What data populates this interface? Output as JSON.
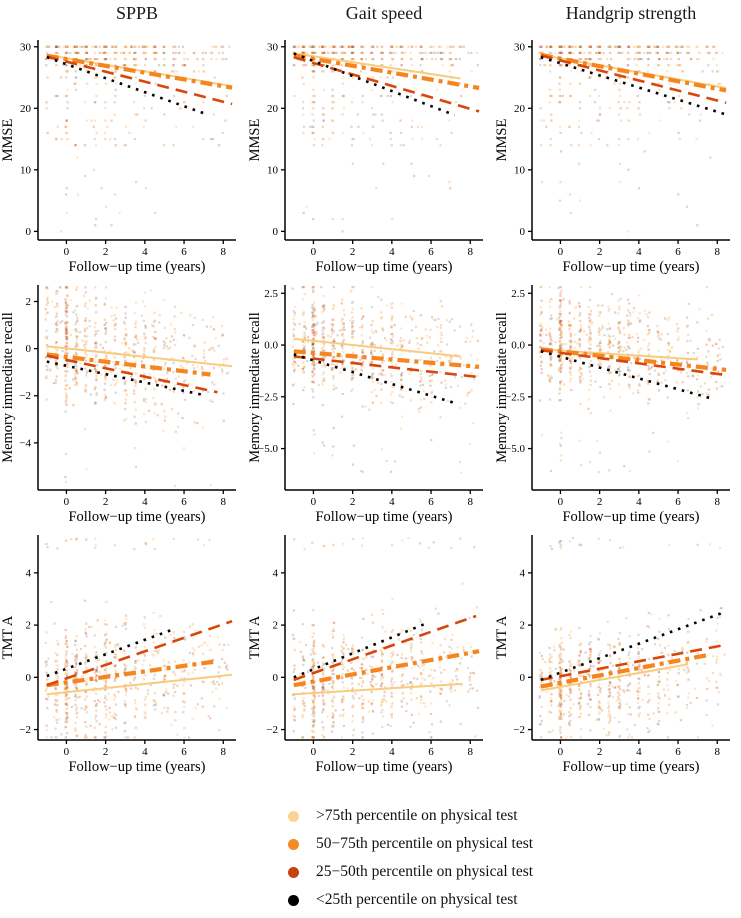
{
  "figure": {
    "column_titles": [
      "SPPB",
      "Gait speed",
      "Handgrip strength"
    ],
    "row_titles": [
      "MMSE",
      "Memory immediate recall",
      "TMT A"
    ],
    "x_axis_label": "Follow−up time (years)"
  },
  "legend": {
    "position": "bottom-center",
    "items": [
      {
        "label": ">75th percentile on physical test",
        "dot_color": "#FBD397",
        "line": {
          "color": "#F9CB7D",
          "width": 2.0,
          "dash": ""
        }
      },
      {
        "label": "50−75th percentile on physical test",
        "dot_color": "#F68A25",
        "line": {
          "color": "#F5861F",
          "width": 4.2,
          "dash": "12 5 4 5"
        }
      },
      {
        "label": "25−50th percentile on physical test",
        "dot_color": "#C4450C",
        "line": {
          "color": "#D84709",
          "width": 2.6,
          "dash": "12 7"
        }
      },
      {
        "label": "<25th percentile on physical test",
        "dot_color": "#000000",
        "line": {
          "color": "#000000",
          "width": 2.6,
          "dash": "2.6 6"
        }
      }
    ]
  },
  "chart_data": [
    {
      "type": "scatter",
      "id": "sppb-mmse",
      "column": "SPPB",
      "ylabel": "MMSE",
      "xlabel": "Follow−up time (years)",
      "xlim": [
        -1.45,
        8.65
      ],
      "xticks": [
        0,
        2,
        4,
        6,
        8
      ],
      "xtick_labels": [
        "0",
        "2",
        "4",
        "6",
        "8"
      ],
      "ylim": [
        -1.4,
        31.1
      ],
      "yticks": [
        0,
        10,
        20,
        30
      ],
      "ytick_labels": [
        "0",
        "10",
        "20",
        "30"
      ],
      "trend_lines": [
        {
          "group": ">75th percentile",
          "x": [
            -1,
            8.45
          ],
          "y": [
            28.7,
            23.6
          ]
        },
        {
          "group": "50−75th percentile",
          "x": [
            -1,
            8.45
          ],
          "y": [
            28.55,
            23.35
          ]
        },
        {
          "group": "25−50th percentile",
          "x": [
            -1,
            8.45
          ],
          "y": [
            28.4,
            20.7
          ]
        },
        {
          "group": "<25th percentile",
          "x": [
            -1,
            7.0
          ],
          "y": [
            28.3,
            19.2
          ]
        }
      ],
      "scatter": {
        "profile": "mmse",
        "count": 520,
        "seed": 11
      }
    },
    {
      "type": "scatter",
      "id": "gait-mmse",
      "column": "Gait speed",
      "ylabel": "MMSE",
      "xlabel": "Follow−up time (years)",
      "xlim": [
        -1.45,
        8.65
      ],
      "xticks": [
        0,
        2,
        4,
        6,
        8
      ],
      "xtick_labels": [
        "0",
        "2",
        "4",
        "6",
        "8"
      ],
      "ylim": [
        -1.4,
        31.1
      ],
      "yticks": [
        0,
        10,
        20,
        30
      ],
      "ytick_labels": [
        "0",
        "10",
        "20",
        "30"
      ],
      "trend_lines": [
        {
          "group": ">75th percentile",
          "x": [
            -1,
            7.5
          ],
          "y": [
            28.95,
            24.85
          ]
        },
        {
          "group": "50−75th percentile",
          "x": [
            -1,
            8.45
          ],
          "y": [
            28.6,
            23.3
          ]
        },
        {
          "group": "25−50th percentile",
          "x": [
            -1,
            8.45
          ],
          "y": [
            28.3,
            19.5
          ]
        },
        {
          "group": "<25th percentile",
          "x": [
            -1,
            7.2
          ],
          "y": [
            28.9,
            18.9
          ]
        }
      ],
      "scatter": {
        "profile": "mmse",
        "count": 520,
        "seed": 12
      }
    },
    {
      "type": "scatter",
      "id": "handgrip-mmse",
      "column": "Handgrip strength",
      "ylabel": "MMSE",
      "xlabel": "Follow−up time (years)",
      "xlim": [
        -1.45,
        8.65
      ],
      "xticks": [
        0,
        2,
        4,
        6,
        8
      ],
      "xtick_labels": [
        "0",
        "2",
        "4",
        "6",
        "8"
      ],
      "ylim": [
        -1.4,
        31.1
      ],
      "yticks": [
        0,
        10,
        20,
        30
      ],
      "ytick_labels": [
        "0",
        "10",
        "20",
        "30"
      ],
      "trend_lines": [
        {
          "group": ">75th percentile",
          "x": [
            -1,
            8.45
          ],
          "y": [
            28.7,
            23.3
          ]
        },
        {
          "group": "50−75th percentile",
          "x": [
            -1,
            8.45
          ],
          "y": [
            28.7,
            22.9
          ]
        },
        {
          "group": "25−50th percentile",
          "x": [
            -1,
            8.45
          ],
          "y": [
            28.6,
            20.9
          ]
        },
        {
          "group": "<25th percentile",
          "x": [
            -1,
            8.45
          ],
          "y": [
            28.3,
            19.0
          ]
        }
      ],
      "scatter": {
        "profile": "mmse",
        "count": 520,
        "seed": 13
      }
    },
    {
      "type": "scatter",
      "id": "sppb-memory",
      "column": "SPPB",
      "ylabel": "Memory immediate recall",
      "xlabel": "Follow−up time (years)",
      "xlim": [
        -1.45,
        8.65
      ],
      "xticks": [
        0,
        2,
        4,
        6,
        8
      ],
      "xtick_labels": [
        "0",
        "2",
        "4",
        "6",
        "8"
      ],
      "ylim": [
        -6.0,
        2.7
      ],
      "yticks": [
        2,
        0,
        -2,
        -4
      ],
      "ytick_labels": [
        "2",
        "0",
        "−2",
        "−4"
      ],
      "trend_lines": [
        {
          "group": ">75th percentile",
          "x": [
            -1,
            8.45
          ],
          "y": [
            0.1,
            -0.75
          ]
        },
        {
          "group": "50−75th percentile",
          "x": [
            -1,
            7.35
          ],
          "y": [
            -0.25,
            -1.1
          ]
        },
        {
          "group": "25−50th percentile",
          "x": [
            -1,
            7.7
          ],
          "y": [
            -0.3,
            -1.85
          ]
        },
        {
          "group": "<25th percentile",
          "x": [
            -1,
            6.9
          ],
          "y": [
            -0.55,
            -1.95
          ]
        }
      ],
      "scatter": {
        "profile": "zscore",
        "count": 680,
        "seed": 21
      }
    },
    {
      "type": "scatter",
      "id": "gait-memory",
      "column": "Gait speed",
      "ylabel": "Memory immediate recall",
      "xlabel": "Follow−up time (years)",
      "xlim": [
        -1.45,
        8.65
      ],
      "xticks": [
        0,
        2,
        4,
        6,
        8
      ],
      "xtick_labels": [
        "0",
        "2",
        "4",
        "6",
        "8"
      ],
      "ylim": [
        -7.0,
        2.9
      ],
      "yticks": [
        2.5,
        0,
        -2.5,
        -5
      ],
      "ytick_labels": [
        "2.5",
        "0.0",
        "−2.5",
        "−5.0"
      ],
      "trend_lines": [
        {
          "group": ">75th percentile",
          "x": [
            -1,
            7.5
          ],
          "y": [
            0.3,
            -0.55
          ]
        },
        {
          "group": "50−75th percentile",
          "x": [
            -1,
            8.45
          ],
          "y": [
            -0.3,
            -1.05
          ]
        },
        {
          "group": "25−50th percentile",
          "x": [
            -1,
            8.45
          ],
          "y": [
            -0.55,
            -1.55
          ]
        },
        {
          "group": "<25th percentile",
          "x": [
            -1,
            7.4
          ],
          "y": [
            -0.45,
            -2.85
          ]
        }
      ],
      "scatter": {
        "profile": "zscore",
        "count": 680,
        "seed": 22
      }
    },
    {
      "type": "scatter",
      "id": "handgrip-memory",
      "column": "Handgrip strength",
      "ylabel": "Memory immediate recall",
      "xlabel": "Follow−up time (years)",
      "xlim": [
        -1.45,
        8.65
      ],
      "xticks": [
        0,
        2,
        4,
        6,
        8
      ],
      "xtick_labels": [
        "0",
        "2",
        "4",
        "6",
        "8"
      ],
      "ylim": [
        -7.0,
        2.9
      ],
      "yticks": [
        2.5,
        0,
        -2.5,
        -5
      ],
      "ytick_labels": [
        "2.5",
        "0.0",
        "−2.5",
        "−5.0"
      ],
      "trend_lines": [
        {
          "group": ">75th percentile",
          "x": [
            -1,
            7.0
          ],
          "y": [
            -0.2,
            -0.7
          ]
        },
        {
          "group": "50−75th percentile",
          "x": [
            -1,
            8.45
          ],
          "y": [
            -0.2,
            -1.2
          ]
        },
        {
          "group": "25−50th percentile",
          "x": [
            -1,
            8.45
          ],
          "y": [
            -0.25,
            -1.45
          ]
        },
        {
          "group": "<25th percentile",
          "x": [
            -1,
            7.6
          ],
          "y": [
            -0.3,
            -2.55
          ]
        }
      ],
      "scatter": {
        "profile": "zscore",
        "count": 680,
        "seed": 23
      }
    },
    {
      "type": "scatter",
      "id": "sppb-tmta",
      "column": "SPPB",
      "ylabel": "TMT A",
      "xlabel": "Follow−up time (years)",
      "xlim": [
        -1.45,
        8.65
      ],
      "xticks": [
        0,
        2,
        4,
        6,
        8
      ],
      "xtick_labels": [
        "0",
        "2",
        "4",
        "6",
        "8"
      ],
      "ylim": [
        -2.4,
        5.45
      ],
      "yticks": [
        4,
        2,
        0,
        -2
      ],
      "ytick_labels": [
        "4",
        "2",
        "0",
        "−2"
      ],
      "trend_lines": [
        {
          "group": ">75th percentile",
          "x": [
            -1,
            8.45
          ],
          "y": [
            -0.65,
            0.1
          ]
        },
        {
          "group": "50−75th percentile",
          "x": [
            -1,
            7.5
          ],
          "y": [
            -0.3,
            0.6
          ]
        },
        {
          "group": "25−50th percentile",
          "x": [
            -1,
            8.45
          ],
          "y": [
            -0.3,
            2.15
          ]
        },
        {
          "group": "<25th percentile",
          "x": [
            -1,
            5.5
          ],
          "y": [
            0.05,
            1.85
          ]
        }
      ],
      "scatter": {
        "profile": "tmt",
        "count": 680,
        "seed": 31
      }
    },
    {
      "type": "scatter",
      "id": "gait-tmta",
      "column": "Gait speed",
      "ylabel": "TMT A",
      "xlabel": "Follow−up time (years)",
      "xlim": [
        -1.45,
        8.65
      ],
      "xticks": [
        0,
        2,
        4,
        6,
        8
      ],
      "xtick_labels": [
        "0",
        "2",
        "4",
        "6",
        "8"
      ],
      "ylim": [
        -2.4,
        5.45
      ],
      "yticks": [
        4,
        2,
        0,
        -2
      ],
      "ytick_labels": [
        "4",
        "2",
        "0",
        "−2"
      ],
      "trend_lines": [
        {
          "group": ">75th percentile",
          "x": [
            -1,
            7.6
          ],
          "y": [
            -0.65,
            -0.25
          ]
        },
        {
          "group": "50−75th percentile",
          "x": [
            -1,
            8.45
          ],
          "y": [
            -0.3,
            1.0
          ]
        },
        {
          "group": "25−50th percentile",
          "x": [
            -1,
            8.3
          ],
          "y": [
            -0.1,
            2.35
          ]
        },
        {
          "group": "<25th percentile",
          "x": [
            -1,
            5.7
          ],
          "y": [
            0.0,
            2.05
          ]
        }
      ],
      "scatter": {
        "profile": "tmt",
        "count": 680,
        "seed": 32
      }
    },
    {
      "type": "scatter",
      "id": "handgrip-tmta",
      "column": "Handgrip strength",
      "ylabel": "TMT A",
      "xlabel": "Follow−up time (years)",
      "xlim": [
        -1.45,
        8.65
      ],
      "xticks": [
        0,
        2,
        4,
        6,
        8
      ],
      "xtick_labels": [
        "0",
        "2",
        "4",
        "6",
        "8"
      ],
      "ylim": [
        -2.4,
        5.45
      ],
      "yticks": [
        4,
        2,
        0,
        -2
      ],
      "ytick_labels": [
        "4",
        "2",
        "0",
        "−2"
      ],
      "trend_lines": [
        {
          "group": ">75th percentile",
          "x": [
            -1,
            6.5
          ],
          "y": [
            -0.5,
            0.5
          ]
        },
        {
          "group": "50−75th percentile",
          "x": [
            -1,
            7.5
          ],
          "y": [
            -0.35,
            0.85
          ]
        },
        {
          "group": "25−50th percentile",
          "x": [
            -1,
            8.45
          ],
          "y": [
            -0.1,
            1.25
          ]
        },
        {
          "group": "<25th percentile",
          "x": [
            -1,
            8.2
          ],
          "y": [
            -0.1,
            2.45
          ]
        }
      ],
      "scatter": {
        "profile": "tmt",
        "count": 680,
        "seed": 33
      }
    }
  ]
}
